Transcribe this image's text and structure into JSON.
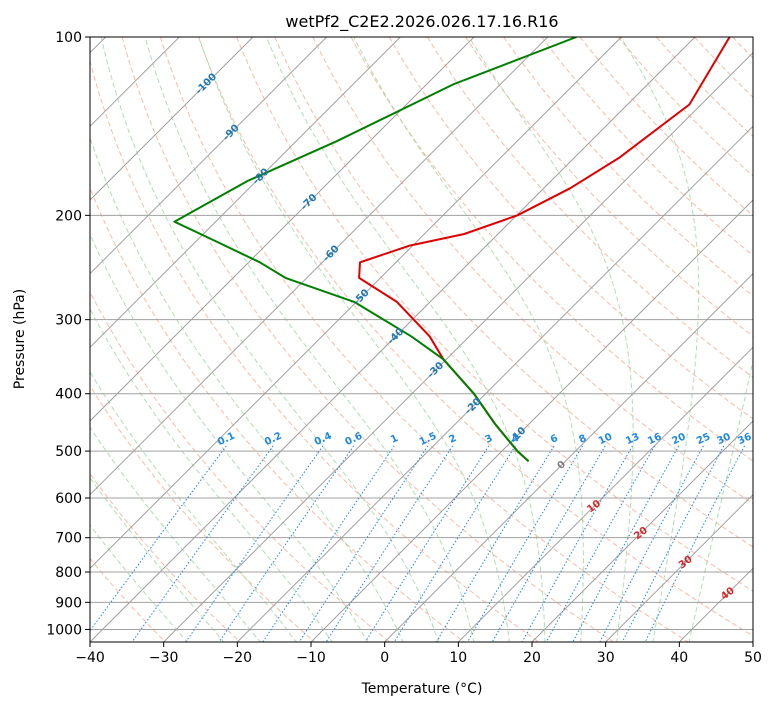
{
  "chart_data": {
    "type": "line",
    "title": "wetPf2_C2E2.2026.026.17.16.R16",
    "xlabel": "Temperature (°C)",
    "ylabel": "Pressure (hPa)",
    "xlim": [
      -40,
      50
    ],
    "ylim": [
      1050,
      100
    ],
    "x_ticks": [
      "−40",
      "−30",
      "−20",
      "−10",
      "0",
      "10",
      "20",
      "30",
      "40",
      "50"
    ],
    "x_tick_values": [
      -40,
      -30,
      -20,
      -10,
      0,
      10,
      20,
      30,
      40,
      50
    ],
    "y_ticks": [
      "100",
      "200",
      "300",
      "400",
      "500",
      "600",
      "700",
      "800",
      "900",
      "1000"
    ],
    "y_tick_values": [
      100,
      200,
      300,
      400,
      500,
      600,
      700,
      800,
      900,
      1000
    ],
    "colors": {
      "temperature": "#e00000",
      "dewpoint": "#008000",
      "isotherm": "#a0a0a0",
      "dry_adiabat": "#f5a58a",
      "moist_adiabat": "#9fd49f",
      "mixing_ratio": "#1e88e5",
      "isotherm_label": "#1f77b4",
      "dry_adiabat_label": "#d62728",
      "zero_label": "#808080"
    },
    "series": [
      {
        "name": "temperature",
        "points": [
          {
            "p": 100,
            "t": -35.3
          },
          {
            "p": 130,
            "t": -31.6
          },
          {
            "p": 160,
            "t": -33.9
          },
          {
            "p": 180,
            "t": -36.4
          },
          {
            "p": 200,
            "t": -39.9
          },
          {
            "p": 215,
            "t": -44.6
          },
          {
            "p": 225,
            "t": -50.4
          },
          {
            "p": 240,
            "t": -54.9
          },
          {
            "p": 255,
            "t": -52.9
          },
          {
            "p": 280,
            "t": -44.5
          },
          {
            "p": 320,
            "t": -35.4
          },
          {
            "p": 350,
            "t": -30.4
          },
          {
            "p": 400,
            "t": -21.6
          },
          {
            "p": 450,
            "t": -14.6
          },
          {
            "p": 500,
            "t": -7.9
          },
          {
            "p": 520,
            "t": -5.0
          }
        ]
      },
      {
        "name": "dewpoint",
        "points": [
          {
            "p": 100,
            "t": -56.1
          },
          {
            "p": 120,
            "t": -66.3
          },
          {
            "p": 150,
            "t": -74.5
          },
          {
            "p": 175,
            "t": -81.2
          },
          {
            "p": 205,
            "t": -85.6
          },
          {
            "p": 220,
            "t": -77.9
          },
          {
            "p": 240,
            "t": -68.5
          },
          {
            "p": 255,
            "t": -62.9
          },
          {
            "p": 280,
            "t": -50.3
          },
          {
            "p": 320,
            "t": -37.9
          },
          {
            "p": 350,
            "t": -30.4
          },
          {
            "p": 400,
            "t": -21.6
          },
          {
            "p": 450,
            "t": -14.6
          },
          {
            "p": 500,
            "t": -7.9
          },
          {
            "p": 520,
            "t": -5.0
          }
        ]
      }
    ],
    "isotherm_labels": [
      "-100",
      "-90",
      "-80",
      "-70",
      "-60",
      "-50",
      "-40",
      "-30",
      "-20",
      "-10"
    ],
    "isotherm_label_values": [
      -100,
      -90,
      -80,
      -70,
      -60,
      -50,
      -40,
      -30,
      -20,
      -10
    ],
    "isotherm_label_pressures": [
      120,
      145,
      172,
      190,
      232,
      275,
      320,
      365,
      420,
      470
    ],
    "isotherm_zero_label": "0",
    "isotherm_zero_label_pressure": 528,
    "mixing_ratio_labels": [
      "0.1",
      "0.2",
      "0.4",
      "0.6",
      "1",
      "1.5",
      "2",
      "3",
      "4",
      "6",
      "8",
      "10",
      "13",
      "16",
      "20",
      "25",
      "30",
      "36"
    ],
    "mixing_ratio_values": [
      0.1,
      0.2,
      0.4,
      0.6,
      1,
      1.5,
      2,
      3,
      4,
      6,
      8,
      10,
      13,
      16,
      20,
      25,
      30,
      36
    ],
    "mixing_ratio_label_pressure": 490,
    "dry_adiabat_labels": [
      "10",
      "20",
      "30",
      "40"
    ],
    "dry_adiabat_label_values": [
      10,
      20,
      30,
      40
    ],
    "dry_adiabat_label_pressures": [
      620,
      688,
      770,
      870
    ]
  }
}
